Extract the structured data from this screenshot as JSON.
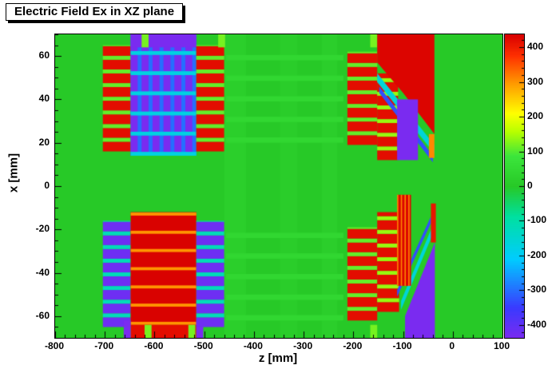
{
  "title": "Electric Field Ex in XZ plane",
  "chart_data": {
    "type": "heatmap",
    "title": "Electric Field Ex in XZ plane",
    "xlabel": "z [mm]",
    "ylabel": "x [mm]",
    "x_range": [
      -800,
      100
    ],
    "y_range": [
      -70,
      70
    ],
    "value_range": [
      -437,
      437
    ],
    "x_major_ticks": [
      -800,
      -700,
      -600,
      -500,
      -400,
      -300,
      -200,
      -100,
      0,
      100
    ],
    "x_minor_step": 20,
    "y_major_ticks": [
      -60,
      -40,
      -20,
      0,
      20,
      40,
      60
    ],
    "y_minor_step": 5,
    "colorbar_ticks": [
      -400,
      -300,
      -200,
      -100,
      0,
      100,
      200,
      300,
      400
    ],
    "colorbar_minor_step": 20,
    "grid": false,
    "legend_position": "right-colorbar",
    "palette": [
      [
        0.0,
        "#7a2bf0"
      ],
      [
        0.1,
        "#3a3aff"
      ],
      [
        0.26,
        "#00ccff"
      ],
      [
        0.4,
        "#00e0a0"
      ],
      [
        0.5,
        "#27c927"
      ],
      [
        0.6,
        "#3ce63c"
      ],
      [
        0.68,
        "#b8ff00"
      ],
      [
        0.74,
        "#ffff00"
      ],
      [
        0.84,
        "#ff9900"
      ],
      [
        0.93,
        "#ff3000"
      ],
      [
        1.0,
        "#d80000"
      ]
    ],
    "background_value": 0,
    "features": [
      {
        "t": "rect",
        "z": [
          -460,
          -416
        ],
        "x": [
          -70,
          70
        ],
        "v": 18
      },
      {
        "t": "rect",
        "z": [
          -348,
          -312
        ],
        "x": [
          -70,
          70
        ],
        "v": 13
      },
      {
        "t": "rect",
        "z": [
          -264,
          -232
        ],
        "x": [
          -70,
          70
        ],
        "v": 16
      },
      {
        "t": "hstripes",
        "z": [
          -456,
          -220
        ],
        "x": [
          20,
          62
        ],
        "a": 2.5,
        "va": 42,
        "b": 7,
        "vb": null
      },
      {
        "t": "hstripes",
        "z": [
          -456,
          -220
        ],
        "x": [
          -62,
          -20
        ],
        "a": 2.5,
        "va": 42,
        "b": 7,
        "vb": null
      },
      {
        "t": "hstripes",
        "z": [
          -704,
          -648
        ],
        "x": [
          16,
          65
        ],
        "a": 4.5,
        "va": 420,
        "b": 1.8,
        "vb": 110
      },
      {
        "t": "rect",
        "z": [
          -648,
          -516
        ],
        "x": [
          14,
          70
        ],
        "v": -300
      },
      {
        "t": "vbars",
        "z": [
          -648,
          -516
        ],
        "x": [
          14,
          70
        ],
        "a": 14,
        "va": -440,
        "b": 8,
        "vb": null
      },
      {
        "t": "hstripes",
        "z": [
          -648,
          -516
        ],
        "x": [
          14,
          70
        ],
        "a": 1.8,
        "va": -170,
        "b": 7.5,
        "vb": null
      },
      {
        "t": "rect",
        "z": [
          -648,
          -516
        ],
        "x": [
          64,
          70
        ],
        "v": -440
      },
      {
        "t": "hstripes",
        "z": [
          -516,
          -460
        ],
        "x": [
          16,
          65
        ],
        "a": 4.5,
        "va": 420,
        "b": 1.8,
        "vb": 110
      },
      {
        "t": "hstripes",
        "z": [
          -704,
          -648
        ],
        "x": [
          -65,
          -16
        ],
        "a": 4.5,
        "va": -420,
        "b": 1.8,
        "vb": -120
      },
      {
        "t": "rect",
        "z": [
          -648,
          -516
        ],
        "x": [
          -64,
          -12
        ],
        "v": 435
      },
      {
        "t": "hstripes",
        "z": [
          -648,
          -516
        ],
        "x": [
          -64,
          -12
        ],
        "a": 1.4,
        "va": 300,
        "b": 7,
        "vb": null
      },
      {
        "t": "rect",
        "z": [
          -648,
          -516
        ],
        "x": [
          -70,
          -64
        ],
        "v": 420
      },
      {
        "t": "rect",
        "z": [
          -662,
          -648
        ],
        "x": [
          -70,
          -62
        ],
        "v": -440
      },
      {
        "t": "rect",
        "z": [
          -516,
          -502
        ],
        "x": [
          -70,
          -62
        ],
        "v": -440
      },
      {
        "t": "hstripes",
        "z": [
          -516,
          -460
        ],
        "x": [
          -65,
          -16
        ],
        "a": 4.5,
        "va": -420,
        "b": 1.8,
        "vb": -120
      },
      {
        "t": "rect",
        "z": [
          -626,
          -612
        ],
        "x": [
          64,
          70
        ],
        "v": 120
      },
      {
        "t": "rect",
        "z": [
          -620,
          -606
        ],
        "x": [
          -70,
          -64
        ],
        "v": 120
      },
      {
        "t": "rect",
        "z": [
          -532,
          -518
        ],
        "x": [
          -70,
          -64
        ],
        "v": 120
      },
      {
        "t": "rect",
        "z": [
          -472,
          -458
        ],
        "x": [
          64,
          70
        ],
        "v": 120
      },
      {
        "t": "rect",
        "z": [
          -166,
          -152
        ],
        "x": [
          64,
          70
        ],
        "v": 120
      },
      {
        "t": "rect",
        "z": [
          -166,
          -152
        ],
        "x": [
          -70,
          -64
        ],
        "v": 120
      },
      {
        "t": "hstripes",
        "z": [
          -212,
          -152
        ],
        "x": [
          19,
          62
        ],
        "a": 4.5,
        "va": 420,
        "b": 1.8,
        "vb": 110
      },
      {
        "t": "hstripes",
        "z": [
          -152,
          -110
        ],
        "x": [
          12,
          52
        ],
        "a": 4.5,
        "va": 420,
        "b": 1.8,
        "vb": 140
      },
      {
        "t": "poly",
        "pts": [
          [
            -152,
            52
          ],
          [
            -37,
            19
          ],
          [
            -37,
            15
          ],
          [
            -152,
            48
          ]
        ],
        "v": -160
      },
      {
        "t": "poly",
        "pts": [
          [
            -148,
            46
          ],
          [
            -40,
            14
          ],
          [
            -40,
            11
          ],
          [
            -148,
            43
          ]
        ],
        "v": -330
      },
      {
        "t": "poly",
        "pts": [
          [
            -152,
            70
          ],
          [
            -37,
            70
          ],
          [
            -37,
            24
          ],
          [
            -100,
            43
          ],
          [
            -152,
            57
          ]
        ],
        "v": 430
      },
      {
        "t": "rect",
        "z": [
          -112,
          -70
        ],
        "x": [
          12,
          40
        ],
        "v": -440
      },
      {
        "t": "rect",
        "z": [
          -48,
          -37
        ],
        "x": [
          13,
          24
        ],
        "v": 310
      },
      {
        "t": "hstripes",
        "z": [
          -212,
          -152
        ],
        "x": [
          -62,
          -19
        ],
        "a": 4.5,
        "va": 420,
        "b": 1.8,
        "vb": 110
      },
      {
        "t": "hstripes",
        "z": [
          -152,
          -108
        ],
        "x": [
          -58,
          -12
        ],
        "a": 4.5,
        "va": 420,
        "b": 1.8,
        "vb": 140
      },
      {
        "t": "poly",
        "pts": [
          [
            -104,
            -57
          ],
          [
            -40,
            -22
          ],
          [
            -40,
            -18
          ],
          [
            -104,
            -53
          ]
        ],
        "v": -160
      },
      {
        "t": "poly",
        "pts": [
          [
            -112,
            -51
          ],
          [
            -44,
            -17
          ],
          [
            -44,
            -14
          ],
          [
            -112,
            -48
          ]
        ],
        "v": -330
      },
      {
        "t": "rect",
        "z": [
          -112,
          -84
        ],
        "x": [
          -46,
          -4
        ],
        "v": 430
      },
      {
        "t": "vbars",
        "z": [
          -112,
          -84
        ],
        "x": [
          -46,
          -4
        ],
        "a": 2.5,
        "va": 310,
        "b": 5,
        "vb": null
      },
      {
        "t": "poly",
        "pts": [
          [
            -96,
            -70
          ],
          [
            -36,
            -70
          ],
          [
            -36,
            -26
          ],
          [
            -96,
            -60
          ]
        ],
        "v": -440
      },
      {
        "t": "rect",
        "z": [
          -44,
          -34
        ],
        "x": [
          -26,
          -8
        ],
        "v": 410
      }
    ]
  }
}
